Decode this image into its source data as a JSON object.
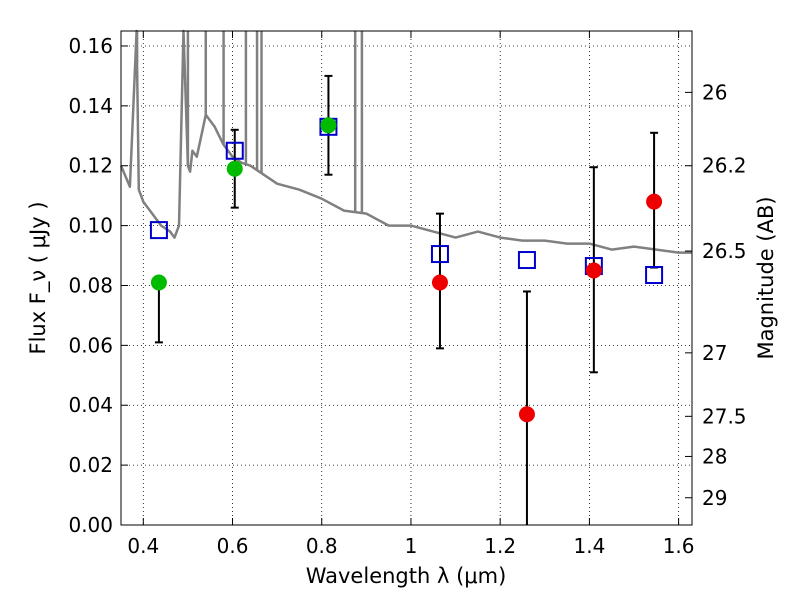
{
  "chart_data": {
    "type": "scatter",
    "title": "",
    "xlabel": "Wavelength  λ (μm)",
    "ylabel": "Flux  F_ν  ( μJy )",
    "y2label": "Magnitude (AB)",
    "xlim": [
      0.35,
      1.63
    ],
    "ylim": [
      0.0,
      0.165
    ],
    "grid": true,
    "x_ticks": [
      {
        "value": 0.4,
        "label": "0.4"
      },
      {
        "value": 0.6,
        "label": "0.6"
      },
      {
        "value": 0.8,
        "label": "0.8"
      },
      {
        "value": 1.0,
        "label": "1"
      },
      {
        "value": 1.2,
        "label": "1.2"
      },
      {
        "value": 1.4,
        "label": "1.4"
      },
      {
        "value": 1.6,
        "label": "1.6"
      }
    ],
    "y_ticks": [
      {
        "value": 0.0,
        "label": "0.00"
      },
      {
        "value": 0.02,
        "label": "0.02"
      },
      {
        "value": 0.04,
        "label": "0.04"
      },
      {
        "value": 0.06,
        "label": "0.06"
      },
      {
        "value": 0.08,
        "label": "0.08"
      },
      {
        "value": 0.1,
        "label": "0.10"
      },
      {
        "value": 0.12,
        "label": "0.12"
      },
      {
        "value": 0.14,
        "label": "0.14"
      },
      {
        "value": 0.16,
        "label": "0.16"
      }
    ],
    "y2_ticks": [
      {
        "flux": 0.1445,
        "label": "26"
      },
      {
        "flux": 0.12,
        "label": "26.2"
      },
      {
        "flux": 0.0915,
        "label": "26.5"
      },
      {
        "flux": 0.0575,
        "label": "27"
      },
      {
        "flux": 0.0363,
        "label": "27.5"
      },
      {
        "flux": 0.0229,
        "label": "28"
      },
      {
        "flux": 0.0091,
        "label": "29"
      }
    ],
    "model_spectrum": {
      "color": "#808080",
      "x": [
        0.35,
        0.37,
        0.385,
        0.39,
        0.395,
        0.4,
        0.42,
        0.44,
        0.46,
        0.47,
        0.48,
        0.49,
        0.5,
        0.505,
        0.51,
        0.52,
        0.53,
        0.54,
        0.55,
        0.56,
        0.57,
        0.58,
        0.6,
        0.62,
        0.64,
        0.66,
        0.68,
        0.7,
        0.75,
        0.8,
        0.85,
        0.9,
        0.95,
        1.0,
        1.05,
        1.1,
        1.15,
        1.2,
        1.25,
        1.3,
        1.35,
        1.4,
        1.45,
        1.5,
        1.55,
        1.6,
        1.63
      ],
      "y": [
        0.12,
        0.113,
        0.165,
        0.112,
        0.11,
        0.108,
        0.104,
        0.1,
        0.098,
        0.096,
        0.1,
        0.165,
        0.12,
        0.118,
        0.125,
        0.123,
        0.13,
        0.137,
        0.135,
        0.133,
        0.13,
        0.127,
        0.123,
        0.121,
        0.12,
        0.118,
        0.116,
        0.114,
        0.112,
        0.109,
        0.105,
        0.104,
        0.1,
        0.1,
        0.098,
        0.096,
        0.098,
        0.096,
        0.095,
        0.095,
        0.094,
        0.094,
        0.092,
        0.093,
        0.092,
        0.091,
        0.091
      ]
    },
    "spectrum_spikes": [
      {
        "x": 0.386,
        "y": 0.165
      },
      {
        "x": 0.49,
        "y": 0.165
      },
      {
        "x": 0.5,
        "y": 0.165
      },
      {
        "x": 0.54,
        "y": 0.165
      },
      {
        "x": 0.58,
        "y": 0.165
      },
      {
        "x": 0.63,
        "y": 0.165
      },
      {
        "x": 0.655,
        "y": 0.165
      },
      {
        "x": 0.665,
        "y": 0.165
      },
      {
        "x": 0.875,
        "y": 0.165
      },
      {
        "x": 0.89,
        "y": 0.165
      }
    ],
    "model_points": {
      "color": "#0000cc",
      "x": [
        0.435,
        0.605,
        0.815,
        1.065,
        1.26,
        1.41,
        1.545
      ],
      "y": [
        0.0985,
        0.125,
        0.133,
        0.0905,
        0.0885,
        0.0865,
        0.0835
      ]
    },
    "observed": [
      {
        "x": 0.435,
        "y": 0.081,
        "yerr_low": 0.061,
        "yerr_high": 0.081,
        "color": "#00bb00"
      },
      {
        "x": 0.605,
        "y": 0.119,
        "yerr_low": 0.106,
        "yerr_high": 0.132,
        "color": "#00bb00"
      },
      {
        "x": 0.815,
        "y": 0.1335,
        "yerr_low": 0.117,
        "yerr_high": 0.15,
        "color": "#00bb00"
      },
      {
        "x": 1.065,
        "y": 0.081,
        "yerr_low": 0.059,
        "yerr_high": 0.104,
        "color": "#ee0000"
      },
      {
        "x": 1.26,
        "y": 0.037,
        "yerr_low": 0.0,
        "yerr_high": 0.078,
        "color": "#ee0000"
      },
      {
        "x": 1.41,
        "y": 0.085,
        "yerr_low": 0.051,
        "yerr_high": 0.1195,
        "color": "#ee0000"
      },
      {
        "x": 1.545,
        "y": 0.108,
        "yerr_low": 0.086,
        "yerr_high": 0.131,
        "color": "#ee0000"
      }
    ]
  }
}
